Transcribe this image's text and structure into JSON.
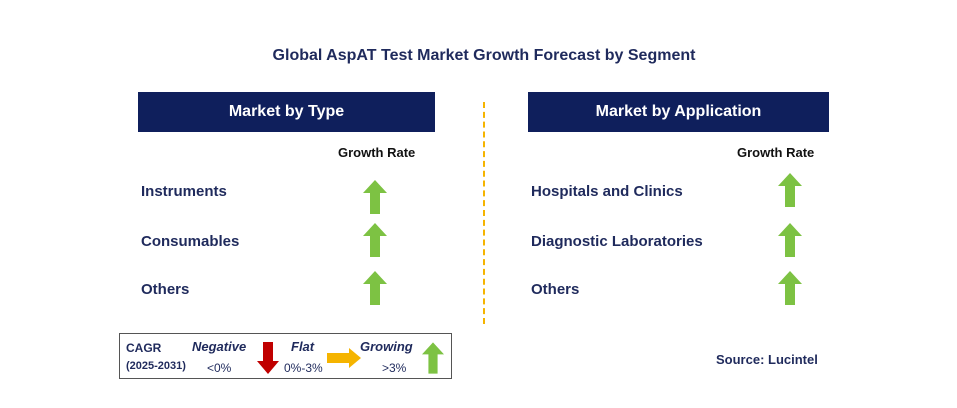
{
  "title": "Global AspAT Test Market Growth Forecast by Segment",
  "left_panel": {
    "header": "Market by Type",
    "rate_label": "Growth Rate",
    "items": [
      {
        "label": "Instruments",
        "trend": "growing"
      },
      {
        "label": "Consumables",
        "trend": "growing"
      },
      {
        "label": "Others",
        "trend": "growing"
      }
    ]
  },
  "right_panel": {
    "header": "Market by Application",
    "rate_label": "Growth Rate",
    "items": [
      {
        "label": "Hospitals and Clinics",
        "trend": "growing"
      },
      {
        "label": "Diagnostic Laboratories",
        "trend": "growing"
      },
      {
        "label": "Others",
        "trend": "growing"
      }
    ]
  },
  "legend": {
    "cagr": "CAGR",
    "period": "(2025-2031)",
    "negative_label": "Negative",
    "negative_range": "<0%",
    "flat_label": "Flat",
    "flat_range": "0%-3%",
    "growing_label": "Growing",
    "growing_range": ">3%"
  },
  "source": "Source: Lucintel",
  "colors": {
    "header_bg": "#0f1f5c",
    "text": "#1f2a5c",
    "growing": "#7dc243",
    "negative": "#c00000",
    "flat": "#f5b400",
    "divider": "#f5b400"
  }
}
